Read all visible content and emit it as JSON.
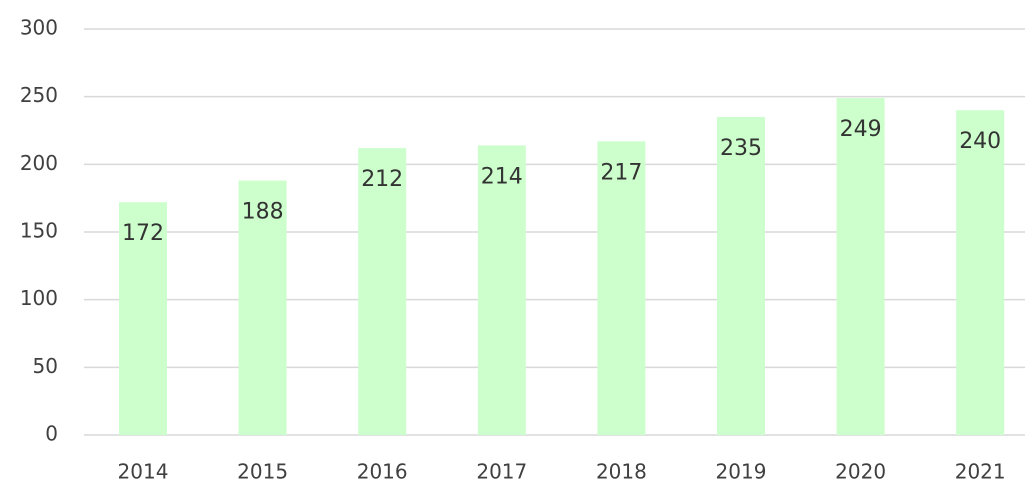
{
  "chart_data": {
    "type": "bar",
    "categories": [
      "2014",
      "2015",
      "2016",
      "2017",
      "2018",
      "2019",
      "2020",
      "2021"
    ],
    "values": [
      172,
      188,
      212,
      214,
      217,
      235,
      249,
      240
    ],
    "color": "#ccffcc",
    "ylim": [
      0,
      300
    ],
    "yticks": [
      0,
      50,
      100,
      150,
      200,
      250,
      300
    ],
    "grid": true
  }
}
